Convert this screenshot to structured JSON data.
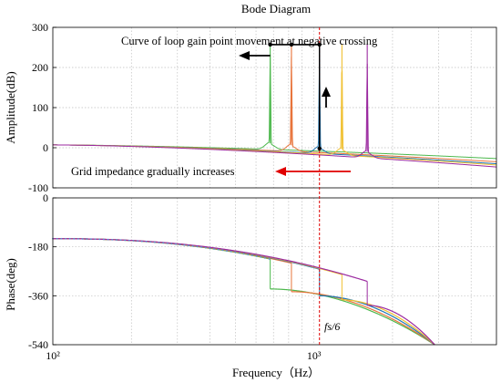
{
  "chart_data": [
    {
      "type": "line",
      "title": "Bode Diagram",
      "xlabel": "Frequency（Hz）",
      "ylabel": "Amplitude(dB)",
      "xscale": "log",
      "xlim": [
        100,
        5000
      ],
      "ylim": [
        -100,
        300
      ],
      "yticks": [
        "300",
        "200",
        "100",
        "0",
        "-100"
      ],
      "grid": true,
      "series": [
        {
          "color": "#4db84d",
          "resonance_hz": 680,
          "peak_db": 257,
          "end_db": -27
        },
        {
          "color": "#e8743b",
          "resonance_hz": 820,
          "peak_db": 257,
          "end_db": -35
        },
        {
          "color": "#1f77b4",
          "resonance_hz": 1050,
          "peak_db": 257,
          "end_db": -40
        },
        {
          "color": "#f0c030",
          "resonance_hz": 1280,
          "peak_db": 257,
          "end_db": -43
        },
        {
          "color": "#9b2aa0",
          "resonance_hz": 1600,
          "peak_db": 257,
          "end_db": -48
        }
      ],
      "annotations": [
        "Curve of loop gain point movement at negative crossing",
        "Grid impedance gradually increases"
      ]
    },
    {
      "type": "line",
      "xlabel": "Frequency（Hz）",
      "ylabel": "Phase(deg)",
      "xscale": "log",
      "xlim": [
        100,
        5000
      ],
      "ylim": [
        -540,
        0
      ],
      "yticks": [
        "0",
        "-180",
        "-360",
        "-540"
      ],
      "xticks": [
        "10²",
        "10³"
      ],
      "grid": true,
      "marker_label": "fs/6",
      "marker_hz": 1050,
      "phase_jumps": [
        {
          "color": "#4db84d",
          "hz": 680,
          "from_deg": -225,
          "to_deg": -335
        },
        {
          "color": "#e8743b",
          "hz": 820,
          "from_deg": -240,
          "to_deg": -345
        },
        {
          "color": "#1f77b4",
          "hz": 1050,
          "from_deg": -262,
          "to_deg": -360
        },
        {
          "color": "#f0c030",
          "hz": 1280,
          "from_deg": -282,
          "to_deg": -375
        },
        {
          "color": "#9b2aa0",
          "hz": 1600,
          "from_deg": -307,
          "to_deg": -395
        }
      ]
    }
  ]
}
